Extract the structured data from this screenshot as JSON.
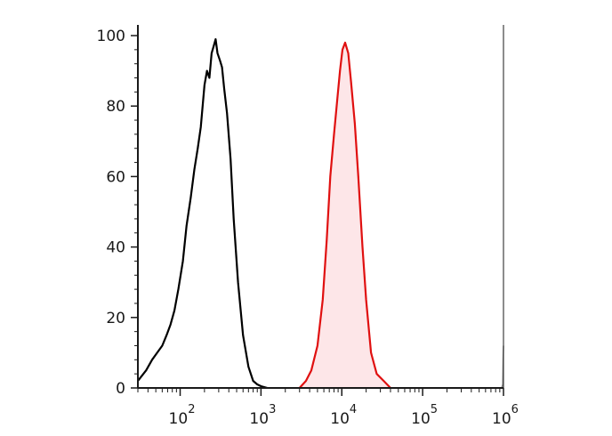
{
  "chart_data": {
    "type": "area",
    "title": "",
    "xlabel": "",
    "ylabel": "",
    "xscale": "log",
    "xlim": [
      30,
      1000000
    ],
    "ylim": [
      0,
      100
    ],
    "grid": false,
    "legend": "none",
    "y_ticks": [
      {
        "value": 0,
        "label": "0"
      },
      {
        "value": 20,
        "label": "20"
      },
      {
        "value": 40,
        "label": "40"
      },
      {
        "value": 60,
        "label": "60"
      },
      {
        "value": 80,
        "label": "80"
      },
      {
        "value": 100,
        "label": "100"
      }
    ],
    "x_ticks": [
      {
        "value": 100,
        "base": "10",
        "exp": "2"
      },
      {
        "value": 1000,
        "base": "10",
        "exp": "3"
      },
      {
        "value": 10000,
        "base": "10",
        "exp": "4"
      },
      {
        "value": 100000,
        "base": "10",
        "exp": "5"
      },
      {
        "value": 1000000,
        "base": "10",
        "exp": "6"
      }
    ],
    "series": [
      {
        "color": "#000000",
        "fill": "none",
        "x": [
          30,
          38,
          45,
          52,
          60,
          68,
          76,
          85,
          95,
          108,
          120,
          135,
          150,
          165,
          180,
          200,
          215,
          230,
          245,
          260,
          275,
          290,
          310,
          330,
          350,
          380,
          420,
          460,
          520,
          600,
          700,
          800,
          900,
          1000,
          1200
        ],
        "y": [
          2,
          5,
          8,
          10,
          12,
          15,
          18,
          22,
          28,
          36,
          46,
          54,
          62,
          68,
          74,
          86,
          90,
          88,
          95,
          97,
          99,
          95,
          93,
          91,
          85,
          78,
          65,
          48,
          30,
          15,
          6,
          2,
          1,
          0.5,
          0
        ]
      },
      {
        "color": "#e01010",
        "fill": "#fde6e8",
        "x": [
          3000,
          3600,
          4200,
          5000,
          5800,
          6500,
          7200,
          8000,
          8800,
          9500,
          10200,
          11000,
          12000,
          13000,
          14500,
          16000,
          18000,
          20000,
          23000,
          27000,
          33000,
          40000
        ],
        "y": [
          0,
          2,
          5,
          12,
          25,
          42,
          60,
          72,
          82,
          90,
          96,
          98,
          95,
          87,
          75,
          60,
          40,
          25,
          10,
          4,
          2,
          0
        ]
      },
      {
        "color": "#888888",
        "fill": "#cccccc",
        "x": [
          950000,
          980000,
          990000,
          1000000
        ],
        "y": [
          0,
          1,
          8,
          12
        ]
      }
    ]
  }
}
